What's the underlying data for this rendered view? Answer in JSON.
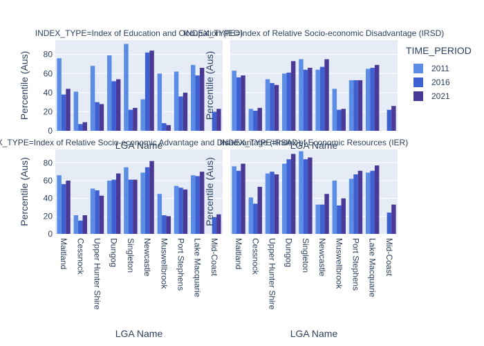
{
  "chart_data": {
    "type": "bar",
    "layout": "facet-2x2",
    "categories": [
      "Maitland",
      "Cessnock",
      "Upper Hunter Shire",
      "Dungog",
      "Singleton",
      "Newcastle",
      "Muswellbrook",
      "Port Stephens",
      "Lake Macquarie",
      "Mid-Coast"
    ],
    "xlabel": "LGA Name",
    "ylabel": "Percentile (Aus)",
    "ylim": [
      0,
      95
    ],
    "yticks": [
      0,
      20,
      40,
      60,
      80
    ],
    "legend": {
      "title": "TIME_PERIOD",
      "placement": "right",
      "items": [
        {
          "name": "2011",
          "color": "#5c8de6"
        },
        {
          "name": "2016",
          "color": "#3f60d0"
        },
        {
          "name": "2021",
          "color": "#4a3a96"
        }
      ]
    },
    "facets": [
      {
        "title": "INDEX_TYPE=Index of Education and Occupation (IEO)",
        "series": [
          {
            "name": "2011",
            "values": [
              76,
              41,
              68,
              79,
              91,
              33,
              60,
              62,
              69,
              null
            ]
          },
          {
            "name": "2016",
            "values": [
              38,
              7,
              30,
              52,
              22,
              82,
              8,
              36,
              58,
              20
            ]
          },
          {
            "name": "2021",
            "values": [
              44,
              9,
              28,
              54,
              24,
              84,
              6,
              40,
              66,
              23
            ]
          }
        ]
      },
      {
        "title": "INDEX_TYPE=Index of Relative Socio-economic Disadvantage (IRSD)",
        "series": [
          {
            "name": "2011",
            "values": [
              63,
              23,
              54,
              60,
              75,
              64,
              44,
              53,
              65,
              null
            ]
          },
          {
            "name": "2016",
            "values": [
              56,
              21,
              50,
              61,
              64,
              67,
              22,
              53,
              66,
              22
            ]
          },
          {
            "name": "2021",
            "values": [
              58,
              24,
              48,
              73,
              66,
              75,
              23,
              53,
              69,
              26
            ]
          }
        ]
      },
      {
        "title": "INDEX_TYPE=Index of Relative Socio-economic Advantage and Disadvantage (IRSAD)",
        "series": [
          {
            "name": "2011",
            "values": [
              66,
              21,
              51,
              60,
              75,
              69,
              45,
              54,
              66,
              null
            ]
          },
          {
            "name": "2016",
            "values": [
              56,
              15,
              49,
              61,
              61,
              75,
              21,
              52,
              65,
              19
            ]
          },
          {
            "name": "2021",
            "values": [
              60,
              21,
              43,
              68,
              61,
              82,
              20,
              50,
              70,
              22
            ]
          }
        ]
      },
      {
        "title": "INDEX_TYPE=Index of Economic Resources (IER)",
        "series": [
          {
            "name": "2011",
            "values": [
              76,
              41,
              68,
              79,
              93,
              33,
              60,
              62,
              69,
              null
            ]
          },
          {
            "name": "2016",
            "values": [
              71,
              34,
              70,
              84,
              84,
              33,
              32,
              67,
              71,
              24
            ]
          },
          {
            "name": "2021",
            "values": [
              79,
              53,
              67,
              90,
              86,
              45,
              40,
              71,
              77,
              33
            ]
          }
        ]
      }
    ]
  }
}
